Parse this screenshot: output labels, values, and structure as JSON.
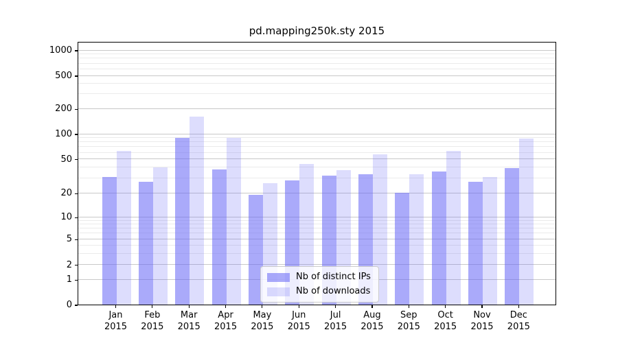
{
  "chart_data": {
    "type": "bar",
    "title": "pd.mapping250k.sty 2015",
    "categories": [
      {
        "month": "Jan",
        "year": "2015"
      },
      {
        "month": "Feb",
        "year": "2015"
      },
      {
        "month": "Mar",
        "year": "2015"
      },
      {
        "month": "Apr",
        "year": "2015"
      },
      {
        "month": "May",
        "year": "2015"
      },
      {
        "month": "Jun",
        "year": "2015"
      },
      {
        "month": "Jul",
        "year": "2015"
      },
      {
        "month": "Aug",
        "year": "2015"
      },
      {
        "month": "Sep",
        "year": "2015"
      },
      {
        "month": "Oct",
        "year": "2015"
      },
      {
        "month": "Nov",
        "year": "2015"
      },
      {
        "month": "Dec",
        "year": "2015"
      }
    ],
    "series": [
      {
        "name": "Nb of distinct IPs",
        "color": "rgba(101,101,246,0.55)",
        "values": [
          31,
          27,
          90,
          38,
          19,
          28,
          32,
          33,
          20,
          36,
          27,
          39
        ]
      },
      {
        "name": "Nb of downloads",
        "color": "rgba(101,101,246,0.22)",
        "values": [
          62,
          40,
          160,
          90,
          26,
          44,
          37,
          57,
          33,
          62,
          31,
          87
        ]
      }
    ],
    "xlabel": "",
    "ylabel": "",
    "yscale": "symlog",
    "ylim": [
      0,
      1400
    ],
    "y_ticks": [
      0,
      1,
      2,
      5,
      10,
      20,
      50,
      100,
      200,
      500,
      1000
    ],
    "y_minor_ticks": [
      3,
      4,
      6,
      7,
      8,
      9,
      30,
      40,
      60,
      70,
      80,
      90,
      300,
      400,
      600,
      700,
      800,
      900
    ],
    "scale_anchors": [
      [
        0,
        0.0
      ],
      [
        1,
        0.0956
      ],
      [
        2,
        0.1518
      ],
      [
        5,
        0.2492
      ],
      [
        10,
        0.3325
      ],
      [
        20,
        0.4236
      ],
      [
        50,
        0.5529
      ],
      [
        100,
        0.6484
      ],
      [
        200,
        0.744
      ],
      [
        500,
        0.8698
      ],
      [
        1000,
        0.9661
      ]
    ],
    "grid": true,
    "legend_position": "lower center"
  },
  "colors": {
    "grid_major": "#c8c8c8",
    "grid_minor": "#ebebeb",
    "axis": "#000000",
    "background": "#ffffff"
  }
}
